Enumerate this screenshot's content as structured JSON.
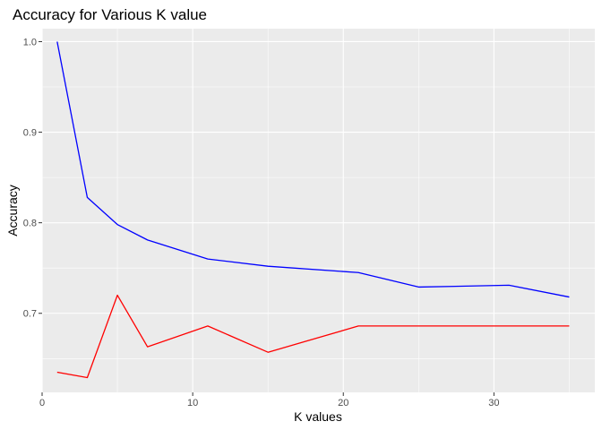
{
  "chart_data": {
    "type": "line",
    "title": "Accuracy for Various K value",
    "xlabel": "K values",
    "ylabel": "Accuracy",
    "xlim": [
      0,
      36.7
    ],
    "ylim": [
      0.6127,
      1.0143
    ],
    "x_major_ticks": [
      0,
      10,
      20,
      30
    ],
    "x_tick_labels": [
      "0",
      "10",
      "20",
      "30"
    ],
    "x_minor_ticks": [
      5,
      15,
      25,
      35
    ],
    "y_major_ticks": [
      0.7,
      0.8,
      0.9,
      1.0
    ],
    "y_tick_labels": [
      "0.7",
      "0.8",
      "0.9",
      "1.0"
    ],
    "y_minor_ticks": [
      0.65,
      0.75,
      0.85,
      0.95
    ],
    "grid": true,
    "legend": "none",
    "series": [
      {
        "color": "#0000ff",
        "x": [
          1,
          3,
          5,
          7,
          11,
          15,
          21,
          25,
          31,
          35
        ],
        "y": [
          1.0,
          0.828,
          0.798,
          0.781,
          0.76,
          0.752,
          0.745,
          0.729,
          0.731,
          0.718
        ]
      },
      {
        "color": "#ff0000",
        "x": [
          1,
          3,
          5,
          7,
          11,
          15,
          21,
          25,
          31,
          35
        ],
        "y": [
          0.635,
          0.629,
          0.72,
          0.663,
          0.686,
          0.657,
          0.686,
          0.686,
          0.686,
          0.686
        ]
      }
    ]
  },
  "colors": {
    "panel_background": "#ebebeb",
    "grid_line": "#ffffff"
  }
}
